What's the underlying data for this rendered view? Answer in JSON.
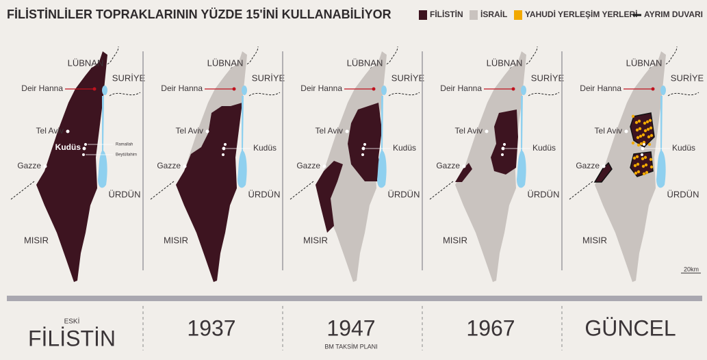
{
  "header": {
    "title": "FİLİSTİNLİLER TOPRAKLARININ YÜZDE 15'İNİ KULLANABİLİYOR"
  },
  "legend": {
    "items": [
      "FİLİSTİN",
      "İSRAİL",
      "YAHUDİ YERLEŞİM YERLERİ",
      "AYRIM DUVARI"
    ]
  },
  "maps": [
    {
      "labels": {
        "lebanon": "LÜBNAN",
        "syria": "SURİYE",
        "deir_hanna": "Deir Hanna",
        "tel_aviv": "Tel Aviv",
        "jerusalem": "Kudüs",
        "gaza": "Gazze",
        "jordan": "ÜRDÜN",
        "egypt": "MISIR",
        "ramallah": "Ramallah",
        "bethlehem": "Beytüllahim"
      },
      "caption": {
        "pre": "ESKİ",
        "title": "FİLİSTİN"
      }
    },
    {
      "labels": {
        "lebanon": "LÜBNAN",
        "syria": "SURİYE",
        "deir_hanna": "Deir Hanna",
        "tel_aviv": "Tel Aviv",
        "jerusalem": "Kudüs",
        "gaza": "Gazze",
        "jordan": "ÜRDÜN",
        "egypt": "MISIR"
      },
      "caption": {
        "title": "1937"
      }
    },
    {
      "labels": {
        "lebanon": "LÜBNAN",
        "syria": "SURİYE",
        "deir_hanna": "Deir Hanna",
        "tel_aviv": "Tel Aviv",
        "jerusalem": "Kudüs",
        "gaza": "Gazze",
        "jordan": "ÜRDÜN",
        "egypt": "MISIR"
      },
      "caption": {
        "title": "1947",
        "sub": "BM TAKSİM PLANI"
      }
    },
    {
      "labels": {
        "lebanon": "LÜBNAN",
        "syria": "SURİYE",
        "deir_hanna": "Deir Hanna",
        "tel_aviv": "Tel Aviv",
        "jerusalem": "Kudüs",
        "gaza": "Gazze",
        "jordan": "ÜRDÜN",
        "egypt": "MISIR"
      },
      "caption": {
        "title": "1967"
      }
    },
    {
      "labels": {
        "lebanon": "LÜBNAN",
        "syria": "SURİYE",
        "deir_hanna": "Deir Hanna",
        "tel_aviv": "Tel Aviv",
        "jerusalem": "Kudüs",
        "gaza": "Gazze",
        "jordan": "ÜRDÜN",
        "egypt": "MISIR"
      },
      "caption": {
        "title": "GÜNCEL"
      }
    }
  ],
  "scale": {
    "label": "20km"
  }
}
